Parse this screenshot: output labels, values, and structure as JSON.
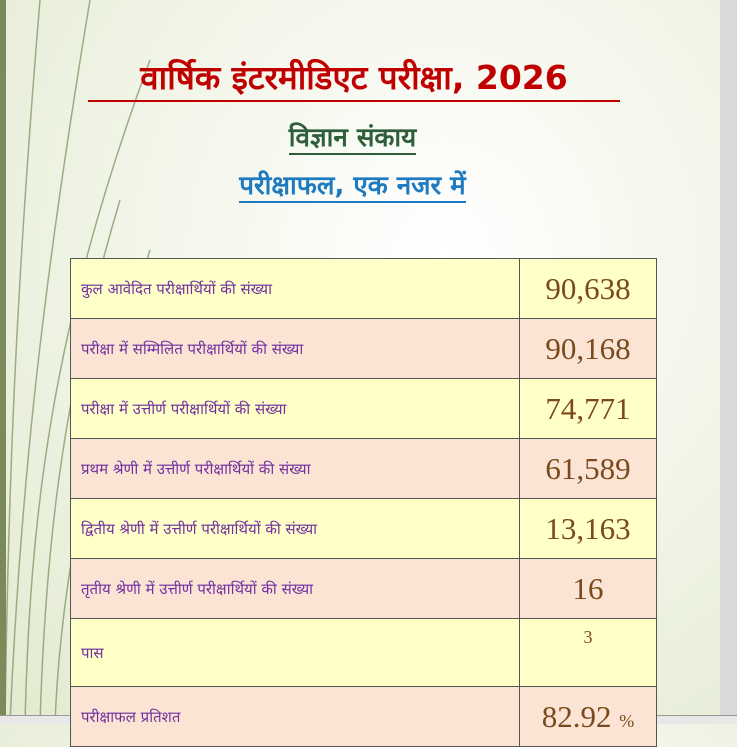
{
  "header": {
    "title": "वार्षिक इंटरमीडिएट परीक्षा, 2026",
    "subtitle": "विज्ञान संकाय",
    "tagline": "परीक्षाफल, एक नजर में"
  },
  "table": {
    "rows": [
      [
        "कुल आवेदित परीक्षार्थियों की संख्या",
        "90,638"
      ],
      [
        "परीक्षा में सम्मिलित परीक्षार्थियों की संख्या",
        "90,168"
      ],
      [
        "परीक्षा में उत्तीर्ण परीक्षार्थियों की संख्या",
        "74,771"
      ],
      [
        "प्रथम श्रेणी में उत्तीर्ण परीक्षार्थियों की संख्या",
        "61,589"
      ],
      [
        "द्वितीय श्रेणी में उत्तीर्ण परीक्षार्थियों की संख्या",
        "13,163"
      ],
      [
        "तृतीय श्रेणी में उत्तीर्ण परीक्षार्थियों की संख्या",
        "16"
      ],
      [
        "पास",
        "3"
      ],
      [
        "परीक्षाफल प्रतिशत",
        "82.92",
        "%"
      ]
    ]
  }
}
